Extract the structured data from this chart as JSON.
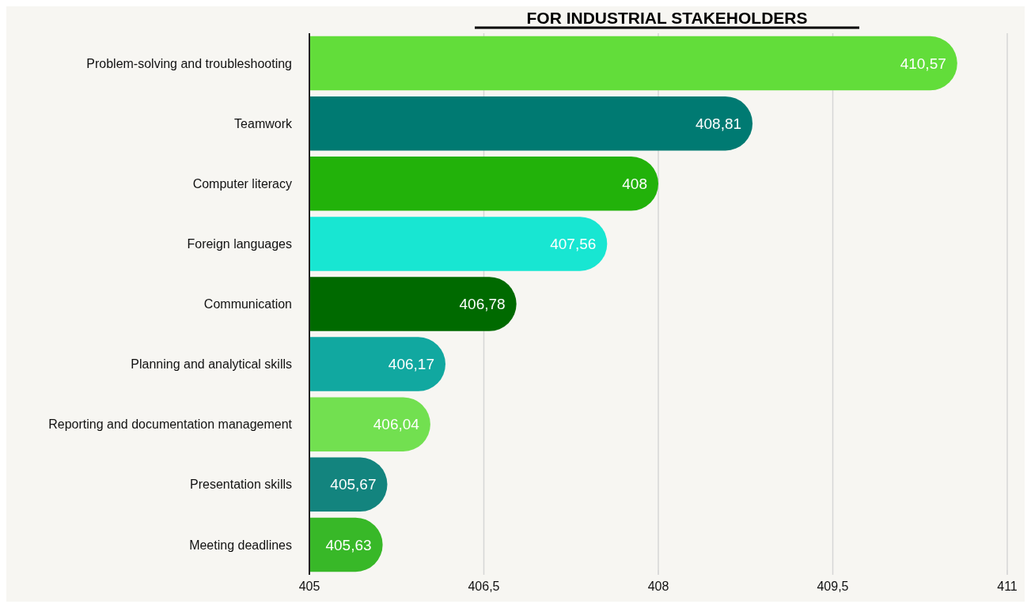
{
  "chart_data": {
    "type": "bar",
    "orientation": "horizontal",
    "title": "FOR INDUSTRIAL STAKEHOLDERS",
    "categories": [
      "Problem-solving and troubleshooting",
      "Teamwork",
      "Computer literacy",
      "Foreign languages",
      "Communication",
      "Planning and analytical skills",
      "Reporting and documentation management",
      "Presentation skills",
      "Meeting deadlines"
    ],
    "values": [
      410.57,
      408.81,
      408,
      407.56,
      406.78,
      406.17,
      406.04,
      405.67,
      405.63
    ],
    "value_labels": [
      "410,57",
      "408,81",
      "408",
      "407,56",
      "406,78",
      "406,17",
      "406,04",
      "405,67",
      "405,63"
    ],
    "colors": [
      "#62dd3a",
      "#007a72",
      "#22b20a",
      "#18e6d2",
      "#006a00",
      "#11a8a0",
      "#72e050",
      "#13847e",
      "#38b828"
    ],
    "xlim": [
      405,
      411
    ],
    "xticks": [
      405,
      {
        "value": 406.5,
        "label": "406,5"
      },
      408,
      {
        "value": 409.5,
        "label": "409,5"
      },
      411
    ],
    "grid": "x"
  }
}
